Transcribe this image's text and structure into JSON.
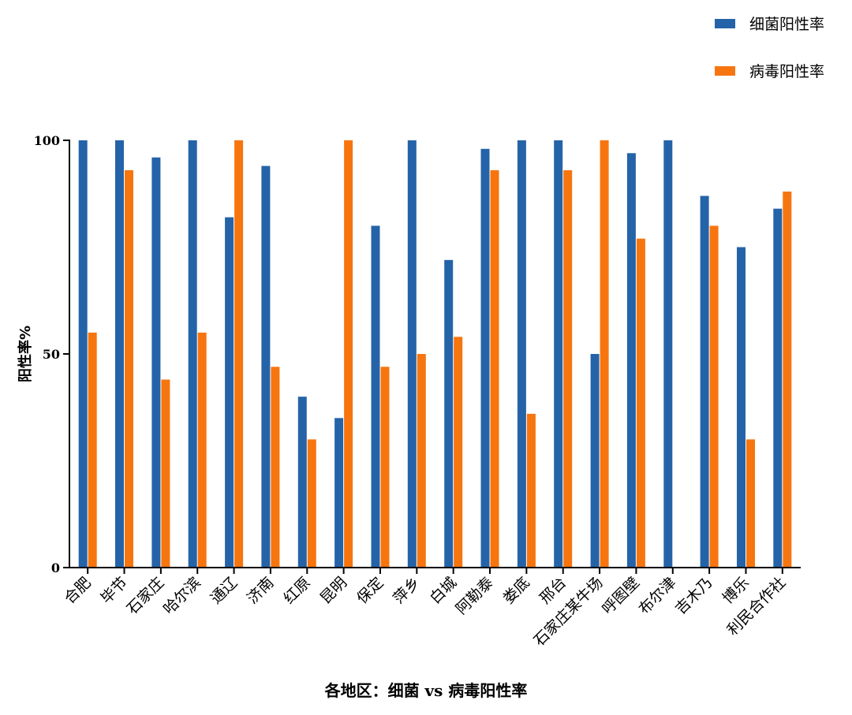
{
  "chart_data": {
    "type": "bar",
    "title": "",
    "xlabel": "各地区：细菌 vs 病毒阳性率",
    "ylabel": "阳性率%",
    "ylim": [
      0,
      100
    ],
    "yticks": [
      0,
      50,
      100
    ],
    "grid": false,
    "legend_position": "top-right",
    "categories": [
      "合肥",
      "毕节",
      "石家庄",
      "哈尔滨",
      "通辽",
      "济南",
      "红原",
      "昆明",
      "保定",
      "萍乡",
      "白城",
      "阿勒泰",
      "娄底",
      "邢台",
      "石家庄某牛场",
      "呼图壁",
      "布尔津",
      "吉木乃",
      "博乐",
      "利民合作社"
    ],
    "series": [
      {
        "name": "细菌阳性率",
        "color": "#2563a8",
        "values": [
          100,
          100,
          96,
          100,
          82,
          94,
          40,
          35,
          80,
          100,
          72,
          98,
          100,
          100,
          50,
          97,
          100,
          87,
          75,
          84
        ]
      },
      {
        "name": "病毒阳性率",
        "color": "#f7750f",
        "values": [
          55,
          93,
          44,
          55,
          100,
          47,
          30,
          100,
          47,
          50,
          54,
          93,
          36,
          93,
          100,
          77,
          0,
          80,
          30,
          88
        ]
      }
    ]
  }
}
